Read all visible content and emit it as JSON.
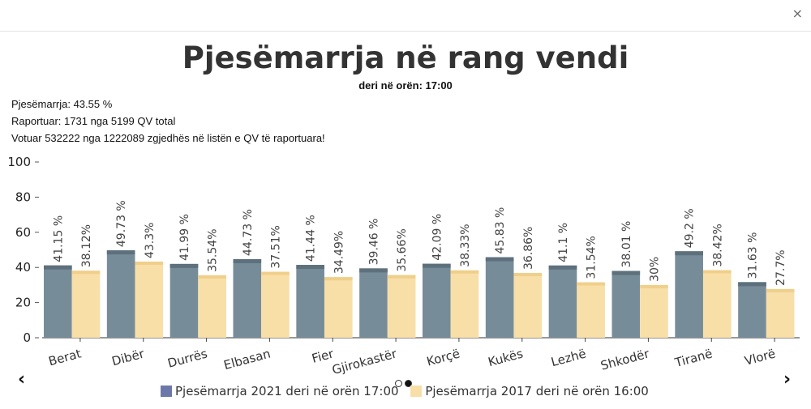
{
  "ui": {
    "close_symbol": "×",
    "prev_symbol": "‹",
    "next_symbol": "›"
  },
  "stats": {
    "participation": "Pjesëmarrja: 43.55 %",
    "reported": "Raportuar: 1731 nga 5199 QV total",
    "voted": "Votuar 532222 nga 1222089 zgjedhës në listën e QV të raportuara!"
  },
  "chart_data": {
    "type": "bar",
    "title": "Pjesëmarrja në rang vendi",
    "subtitle": "deri në orën: 17:00",
    "categories": [
      "Berat",
      "Dibër",
      "Durrës",
      "Elbasan",
      "Fier",
      "Gjirokastër",
      "Korçë",
      "Kukës",
      "Lezhë",
      "Shkodër",
      "Tiranë",
      "Vlorë"
    ],
    "series": [
      {
        "name": "Pjesëmarrja 2021 deri në orën 17:00",
        "color": "#778c99",
        "values": [
          41.15,
          49.73,
          41.99,
          44.73,
          41.44,
          39.46,
          42.09,
          45.83,
          41.1,
          38.01,
          49.2,
          31.63
        ],
        "labels": [
          "41.15 %",
          "49.73 %",
          "41.99 %",
          "44.73 %",
          "41.44 %",
          "39.46 %",
          "42.09 %",
          "45.83 %",
          "41.1 %",
          "38.01 %",
          "49.2 %",
          "31.63 %"
        ]
      },
      {
        "name": "Pjesëmarrja 2017 deri në orën 16:00",
        "color": "#f8dfa8",
        "values": [
          38.12,
          43.3,
          35.54,
          37.51,
          34.49,
          35.66,
          38.33,
          36.86,
          31.54,
          30,
          38.42,
          27.7
        ],
        "labels": [
          "38.12%",
          "43.3%",
          "35.54%",
          "37.51%",
          "34.49%",
          "35.66%",
          "38.33%",
          "36.86%",
          "31.54%",
          "30%",
          "38.42%",
          "27.7%"
        ]
      }
    ],
    "ylim": [
      0,
      100
    ],
    "yticks": [
      "0",
      "20",
      "40",
      "60",
      "80",
      "100"
    ],
    "grid": false,
    "legend_position": "bottom"
  }
}
